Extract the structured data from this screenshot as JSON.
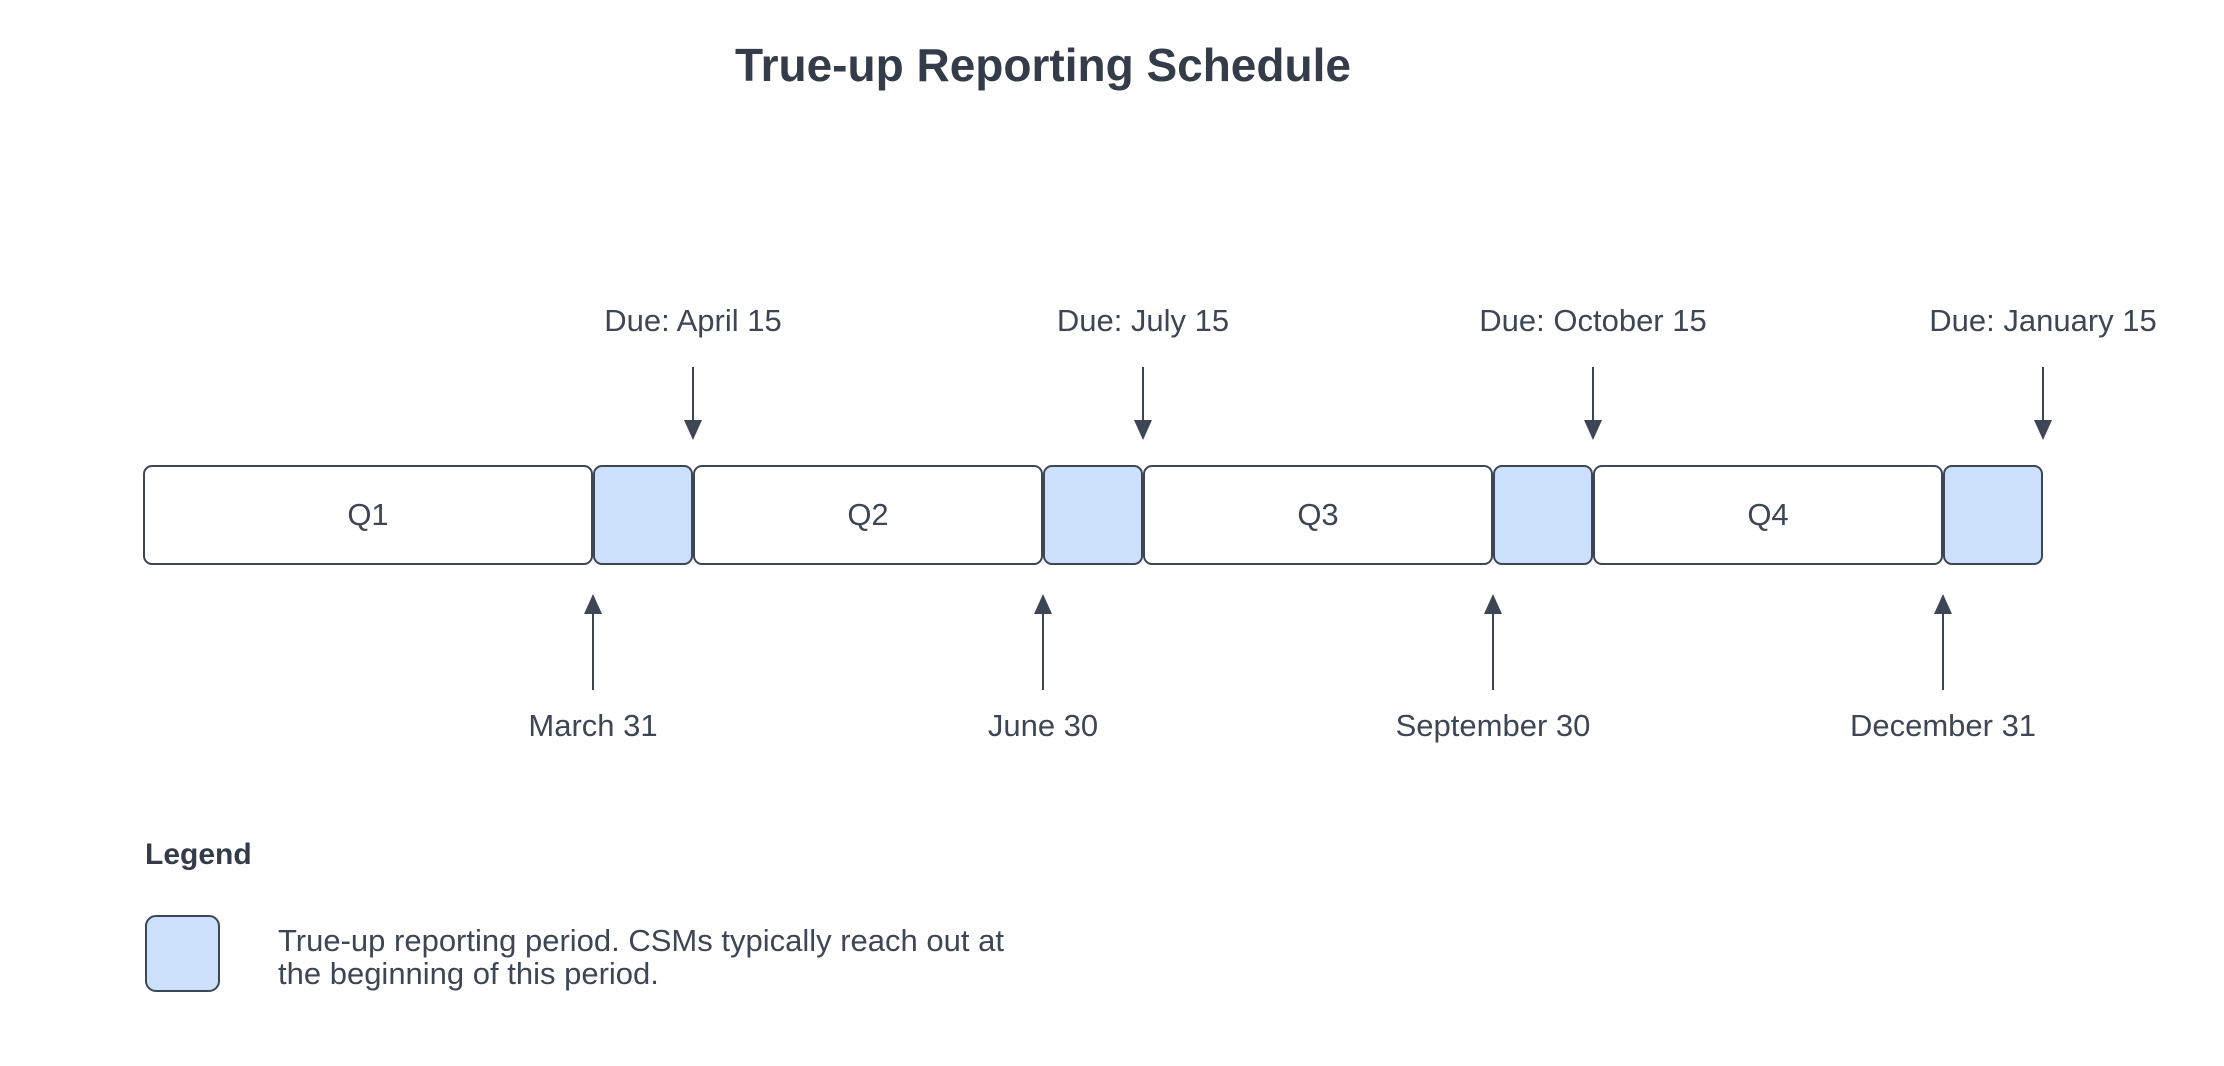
{
  "title": "True-up Reporting Schedule",
  "colors": {
    "trueup_fill": "#cce0fb",
    "stroke": "#3d4655",
    "text": "#3d4655",
    "background": "#ffffff"
  },
  "timeline": {
    "quarters": [
      {
        "label": "Q1"
      },
      {
        "label": "Q2"
      },
      {
        "label": "Q3"
      },
      {
        "label": "Q4"
      }
    ],
    "due_markers": [
      {
        "label": "Due: April 15"
      },
      {
        "label": "Due: July 15"
      },
      {
        "label": "Due: October 15"
      },
      {
        "label": "Due: January 15"
      }
    ],
    "quarter_end_markers": [
      {
        "label": "March 31"
      },
      {
        "label": "June 30"
      },
      {
        "label": "September 30"
      },
      {
        "label": "December 31"
      }
    ]
  },
  "legend": {
    "heading": "Legend",
    "items": [
      {
        "swatch": "trueup-period-swatch",
        "lines": [
          "True-up reporting period. CSMs typically reach out at",
          "the beginning of this period."
        ]
      }
    ]
  }
}
